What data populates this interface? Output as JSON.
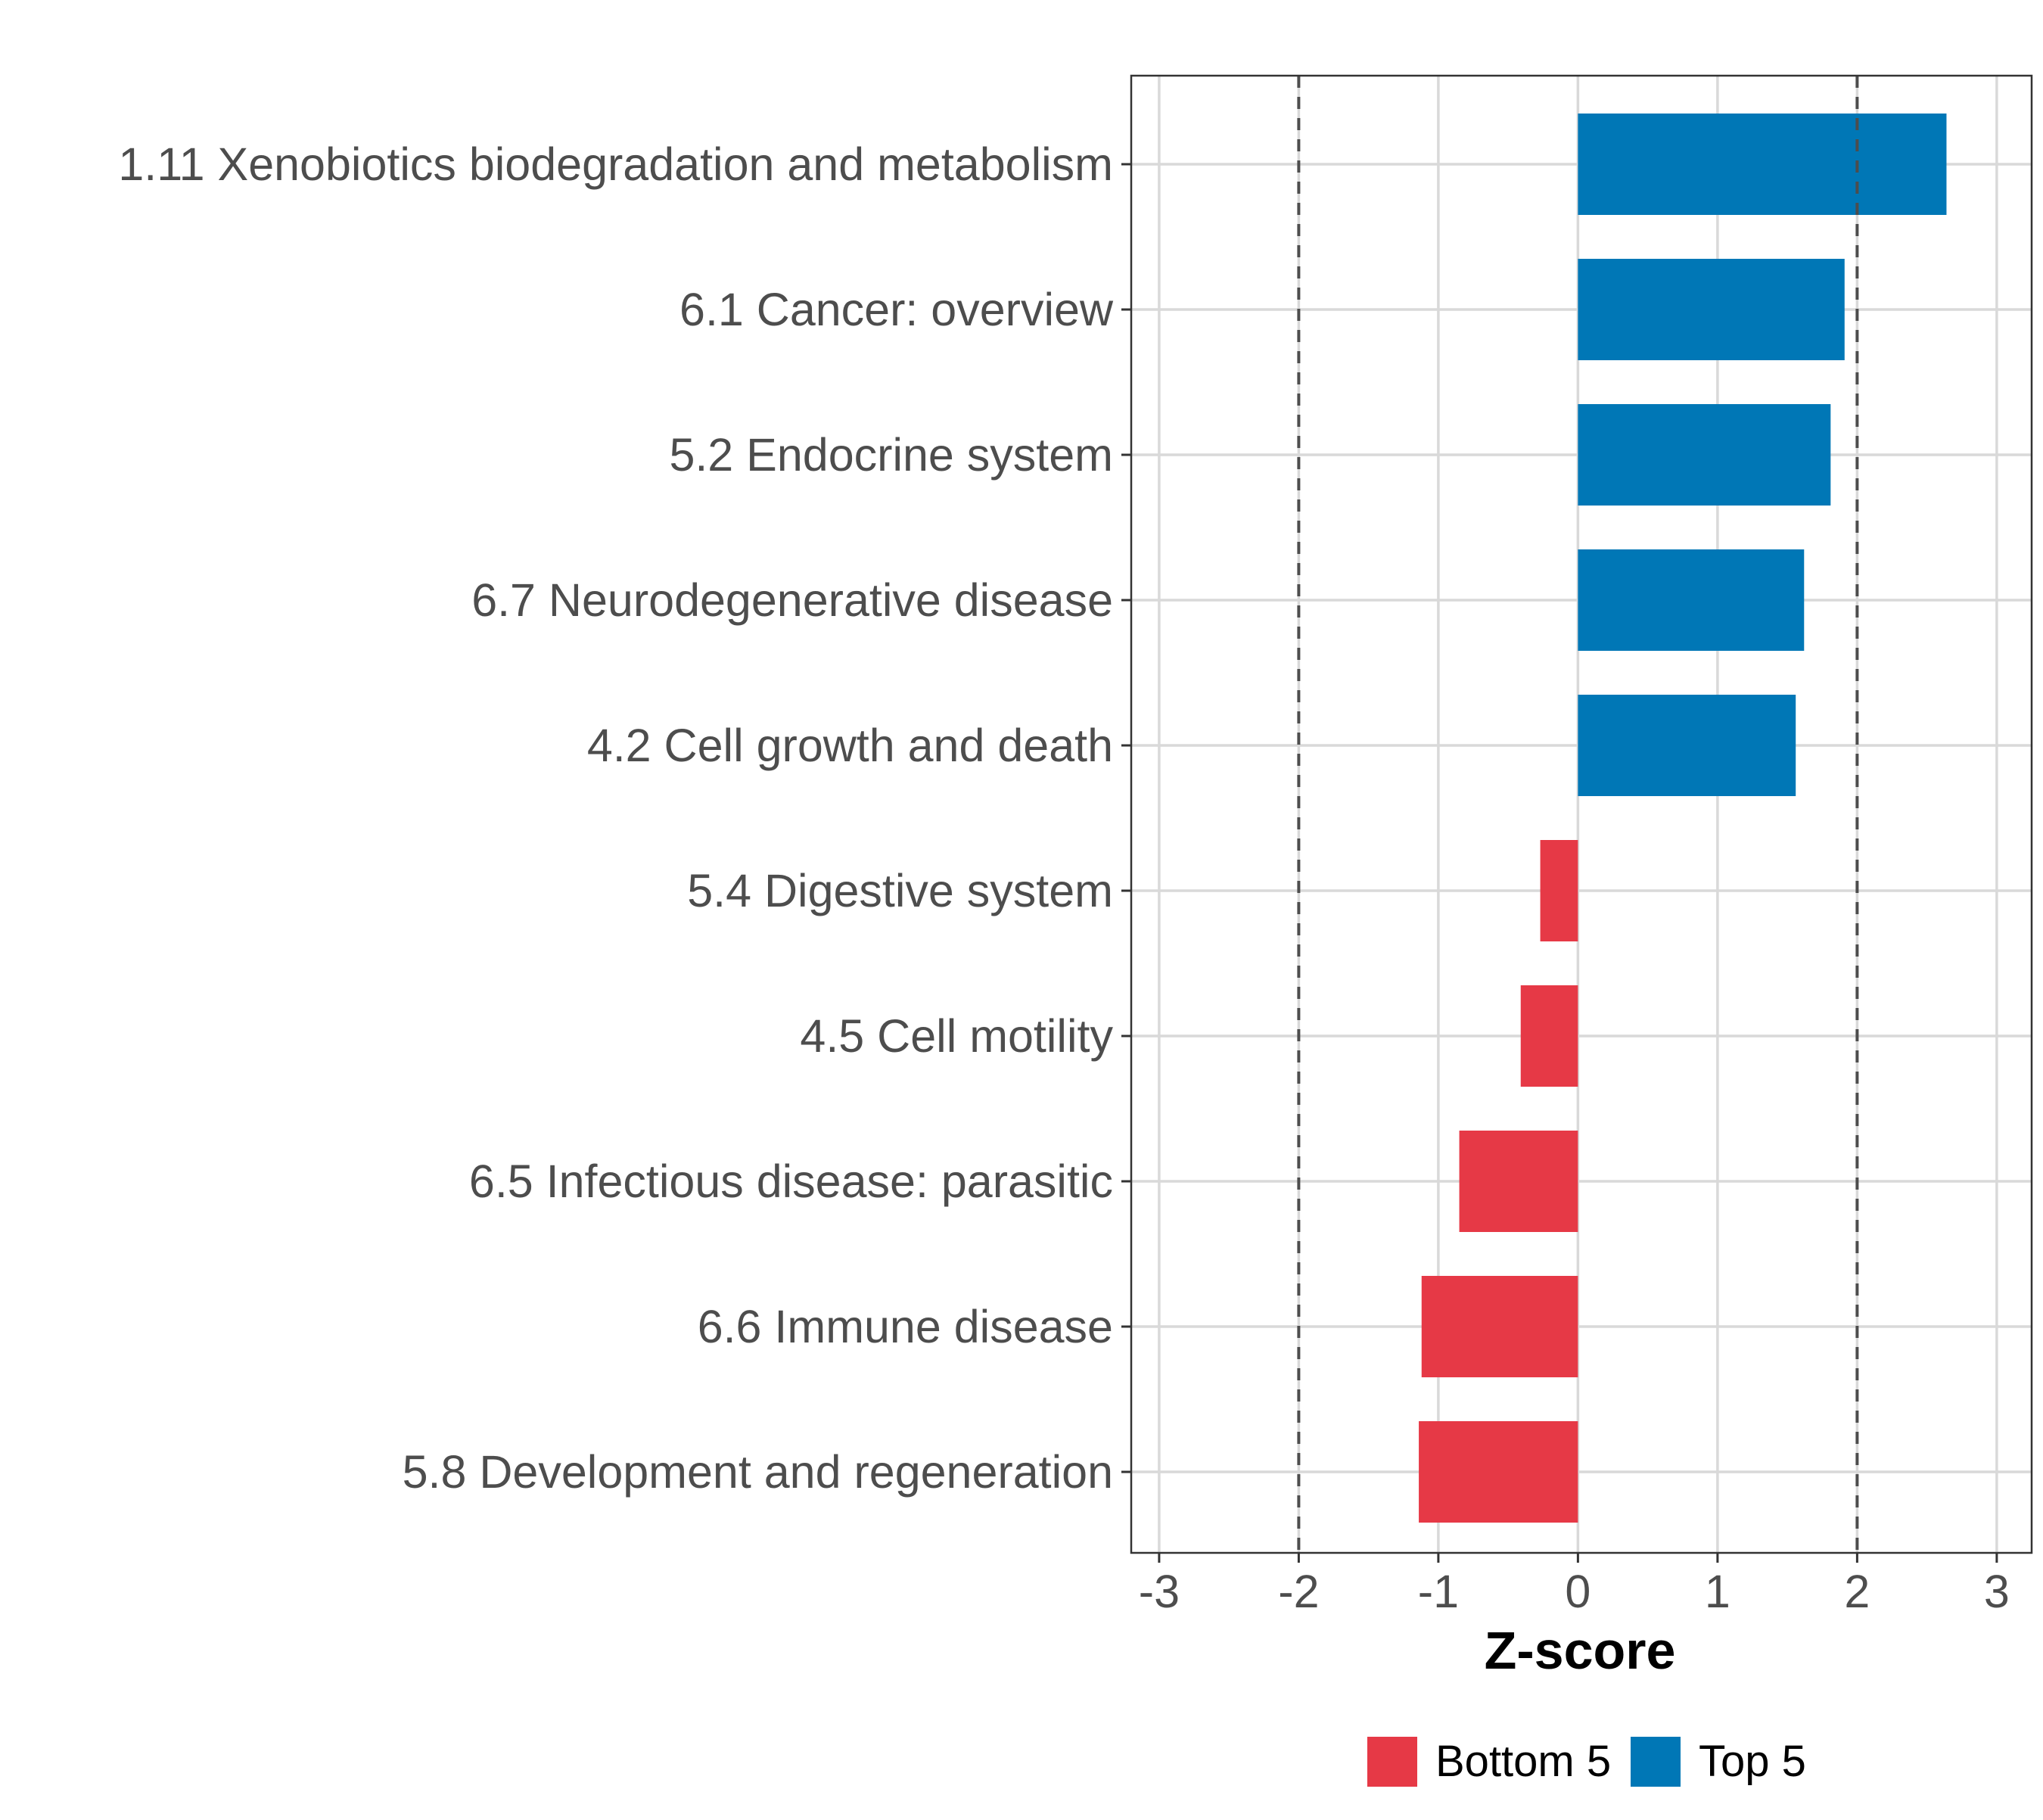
{
  "chart_data": {
    "type": "bar",
    "orientation": "horizontal",
    "title": "",
    "xlabel": "Z-score",
    "ylabel": "",
    "xlim": [
      -3.2,
      3.25
    ],
    "xticks": [
      -3,
      -2,
      -1,
      0,
      1,
      2,
      3
    ],
    "xtick_labels": [
      "-3",
      "-2",
      "-1",
      "0",
      "1",
      "2",
      "3"
    ],
    "reference_lines": [
      -2,
      2
    ],
    "grid": true,
    "legend_position": "bottom",
    "categories": [
      "1.11 Xenobiotics biodegradation and metabolism",
      "6.1 Cancer: overview",
      "5.2 Endocrine system",
      "6.7 Neurodegenerative disease",
      "4.2 Cell growth and death",
      "5.4 Digestive system",
      "4.5 Cell motility",
      "6.5 Infectious disease: parasitic",
      "6.6 Immune disease",
      "5.8 Development and regeneration"
    ],
    "values": [
      2.64,
      1.91,
      1.81,
      1.62,
      1.56,
      -0.27,
      -0.41,
      -0.85,
      -1.12,
      -1.14
    ],
    "groups": [
      "Top 5",
      "Top 5",
      "Top 5",
      "Top 5",
      "Top 5",
      "Bottom 5",
      "Bottom 5",
      "Bottom 5",
      "Bottom 5",
      "Bottom 5"
    ],
    "legend": [
      {
        "name": "Bottom 5",
        "color": "#e63946"
      },
      {
        "name": "Top 5",
        "color": "#0077b6"
      }
    ]
  }
}
